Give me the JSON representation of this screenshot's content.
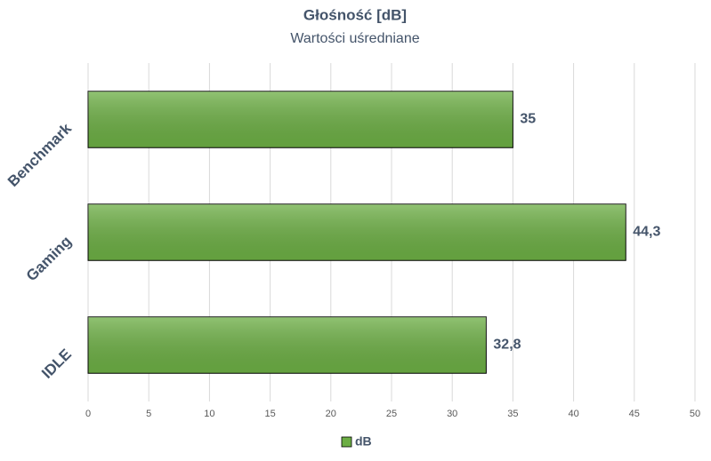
{
  "chart_data": {
    "type": "bar",
    "orientation": "horizontal",
    "title": "Głośność [dB]",
    "subtitle": "Wartości uśredniane",
    "categories": [
      "Benchmark",
      "Gaming",
      "IDLE"
    ],
    "series": [
      {
        "name": "dB",
        "color": "#6cae44",
        "values": [
          35,
          44.3,
          32.8
        ],
        "value_labels": [
          "35",
          "44,3",
          "32,8"
        ]
      }
    ],
    "xlim": [
      0,
      50
    ],
    "xticks": [
      0,
      5,
      10,
      15,
      20,
      25,
      30,
      35,
      40,
      45,
      50
    ],
    "grid": true,
    "legend": "bottom"
  }
}
